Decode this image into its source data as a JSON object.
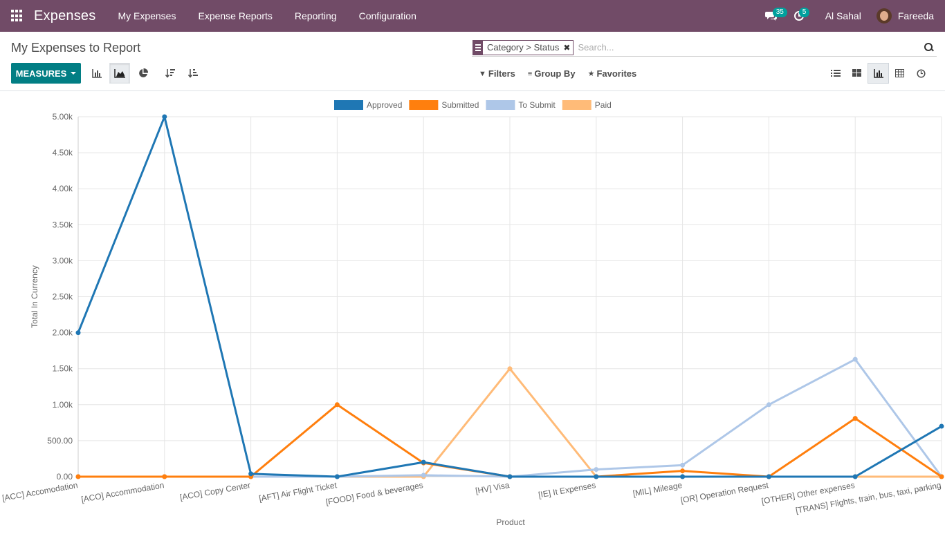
{
  "navbar": {
    "app_title": "Expenses",
    "menu": [
      "My Expenses",
      "Expense Reports",
      "Reporting",
      "Configuration"
    ],
    "messages_badge": "35",
    "activities_badge": "5",
    "company": "Al Sahal",
    "user": "Fareeda",
    "bg_color": "#714b67"
  },
  "control_panel": {
    "title": "My Expenses to Report",
    "search": {
      "facet_label": "Category > Status",
      "placeholder": "Search..."
    },
    "measures_label": "MEASURES",
    "filters_label": "Filters",
    "group_by_label": "Group By",
    "favorites_label": "Favorites",
    "accent_color": "#017e84"
  },
  "chart_data": {
    "type": "line",
    "xlabel": "Product",
    "ylabel": "Total In Currency",
    "ylim": [
      0,
      5000
    ],
    "yticks": [
      "0.00",
      "500.00",
      "1.00k",
      "1.50k",
      "2.00k",
      "2.50k",
      "3.00k",
      "3.50k",
      "4.00k",
      "4.50k",
      "5.00k"
    ],
    "legend_position": "top-center",
    "grid": true,
    "categories": [
      "[ACC] Accomodation",
      "[ACO] Accommodation",
      "[ACO] Copy Center",
      "[AFT] Air Flight Ticket",
      "[FOOD] Food & beverages",
      "[HV] Visa",
      "[IE] It Expenses",
      "[MIL] Mileage",
      "[OR] Operation Request",
      "[OTHER] Other expenses",
      "[TRANS] Flights, train, bus, taxi, parking"
    ],
    "series": [
      {
        "name": "Approved",
        "color": "#1f77b4",
        "values": [
          2000,
          5000,
          40,
          0,
          200,
          0,
          0,
          0,
          0,
          0,
          700
        ]
      },
      {
        "name": "Submitted",
        "color": "#ff7f0e",
        "values": [
          0,
          0,
          0,
          1000,
          190,
          0,
          0,
          80,
          0,
          810,
          0
        ]
      },
      {
        "name": "To Submit",
        "color": "#aec7e8",
        "values": [
          0,
          0,
          0,
          0,
          20,
          0,
          100,
          160,
          1000,
          1630,
          0
        ]
      },
      {
        "name": "Paid",
        "color": "#ffbb78",
        "values": [
          0,
          0,
          0,
          0,
          0,
          1500,
          0,
          0,
          0,
          0,
          0
        ]
      }
    ]
  }
}
